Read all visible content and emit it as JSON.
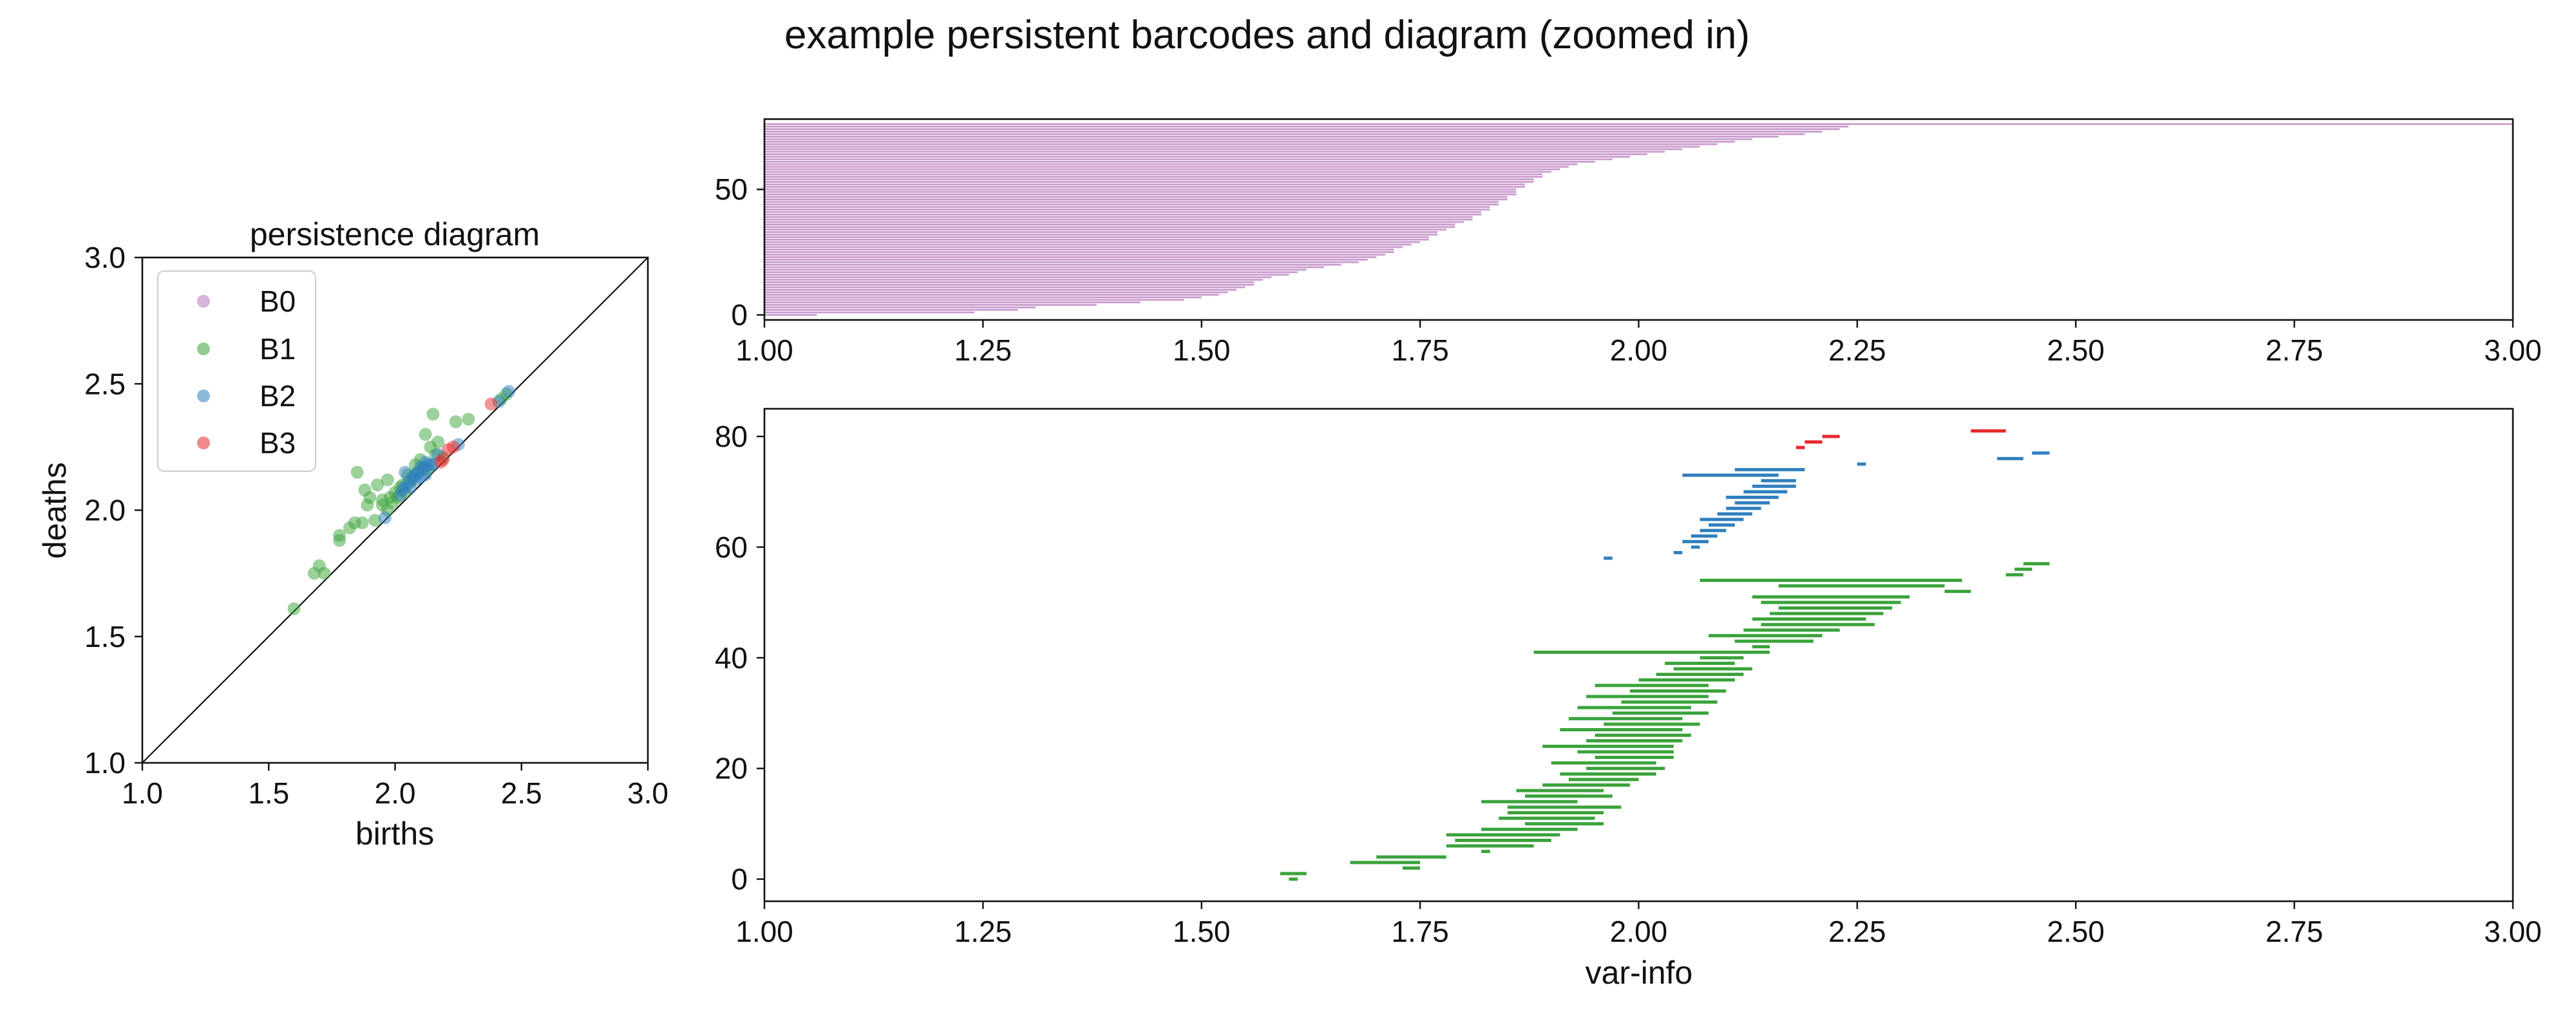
{
  "figure": {
    "title": "example persistent barcodes and diagram (zoomed in)"
  },
  "colors": {
    "B0": "#c99bcc",
    "B1": "#3aa33a",
    "B2": "#2f7fbf",
    "B3": "#e8292b",
    "diagonal": "#111111"
  },
  "chart_data": [
    {
      "type": "scatter",
      "title": "persistence diagram",
      "xlabel": "births",
      "ylabel": "deaths",
      "xlim": [
        1.0,
        3.0
      ],
      "ylim": [
        1.0,
        3.0
      ],
      "xticks": [
        "1.0",
        "1.5",
        "2.0",
        "2.5",
        "3.0"
      ],
      "yticks": [
        "1.0",
        "1.5",
        "2.0",
        "2.5",
        "3.0"
      ],
      "diagonal": true,
      "legend": {
        "placement": "upper-left",
        "entries": [
          "B0",
          "B1",
          "B2",
          "B3"
        ]
      },
      "series": [
        {
          "name": "B0",
          "points": []
        },
        {
          "name": "B1",
          "points": [
            [
              1.6,
              1.61
            ],
            [
              1.68,
              1.75
            ],
            [
              1.7,
              1.78
            ],
            [
              1.72,
              1.75
            ],
            [
              1.78,
              1.88
            ],
            [
              1.78,
              1.9
            ],
            [
              1.82,
              1.93
            ],
            [
              1.84,
              1.95
            ],
            [
              1.85,
              2.15
            ],
            [
              1.87,
              1.95
            ],
            [
              1.88,
              2.08
            ],
            [
              1.89,
              2.02
            ],
            [
              1.9,
              2.05
            ],
            [
              1.92,
              1.96
            ],
            [
              1.93,
              2.1
            ],
            [
              1.95,
              2.02
            ],
            [
              1.95,
              2.04
            ],
            [
              1.97,
              2.0
            ],
            [
              1.97,
              2.12
            ],
            [
              1.98,
              2.05
            ],
            [
              1.99,
              2.03
            ],
            [
              2.0,
              2.07
            ],
            [
              2.01,
              2.05
            ],
            [
              2.02,
              2.09
            ],
            [
              2.03,
              2.1
            ],
            [
              2.04,
              2.07
            ],
            [
              2.05,
              2.14
            ],
            [
              2.06,
              2.11
            ],
            [
              2.07,
              2.13
            ],
            [
              2.08,
              2.18
            ],
            [
              2.09,
              2.15
            ],
            [
              2.1,
              2.2
            ],
            [
              2.11,
              2.17
            ],
            [
              2.12,
              2.3
            ],
            [
              2.13,
              2.16
            ],
            [
              2.14,
              2.25
            ],
            [
              2.15,
              2.38
            ],
            [
              2.16,
              2.22
            ],
            [
              2.17,
              2.27
            ],
            [
              2.19,
              2.21
            ],
            [
              2.24,
              2.35
            ],
            [
              2.29,
              2.36
            ],
            [
              2.42,
              2.44
            ],
            [
              2.44,
              2.46
            ]
          ]
        },
        {
          "name": "B2",
          "points": [
            [
              1.96,
              1.97
            ],
            [
              2.02,
              2.06
            ],
            [
              2.03,
              2.08
            ],
            [
              2.04,
              2.09
            ],
            [
              2.04,
              2.15
            ],
            [
              2.05,
              2.11
            ],
            [
              2.06,
              2.09
            ],
            [
              2.07,
              2.13
            ],
            [
              2.08,
              2.12
            ],
            [
              2.08,
              2.14
            ],
            [
              2.09,
              2.15
            ],
            [
              2.1,
              2.13
            ],
            [
              2.1,
              2.17
            ],
            [
              2.11,
              2.16
            ],
            [
              2.12,
              2.14
            ],
            [
              2.12,
              2.19
            ],
            [
              2.13,
              2.18
            ],
            [
              2.14,
              2.18
            ],
            [
              2.15,
              2.18
            ],
            [
              2.17,
              2.22
            ],
            [
              2.25,
              2.26
            ],
            [
              2.41,
              2.43
            ],
            [
              2.45,
              2.47
            ]
          ]
        },
        {
          "name": "B3",
          "points": [
            [
              2.18,
              2.19
            ],
            [
              2.19,
              2.2
            ],
            [
              2.21,
              2.24
            ],
            [
              2.23,
              2.25
            ],
            [
              2.38,
              2.42
            ]
          ]
        }
      ]
    },
    {
      "type": "bar",
      "orientation": "horizontal",
      "subtype": "barcode",
      "title": "",
      "xlabel": "",
      "ylabel": "",
      "xlim": [
        1.0,
        3.0
      ],
      "ylim": [
        -2,
        78
      ],
      "xticks": [
        "1.00",
        "1.25",
        "1.50",
        "1.75",
        "2.00",
        "2.25",
        "2.50",
        "2.75",
        "3.00"
      ],
      "yticks": [
        "0",
        "50"
      ],
      "series": [
        {
          "name": "B0",
          "start": 1.0,
          "bars": [
            [
              0,
              1.06
            ],
            [
              1,
              1.24
            ],
            [
              2,
              1.29
            ],
            [
              3,
              1.31
            ],
            [
              4,
              1.38
            ],
            [
              5,
              1.43
            ],
            [
              6,
              1.48
            ],
            [
              7,
              1.5
            ],
            [
              8,
              1.52
            ],
            [
              9,
              1.53
            ],
            [
              10,
              1.54
            ],
            [
              11,
              1.55
            ],
            [
              12,
              1.56
            ],
            [
              13,
              1.56
            ],
            [
              14,
              1.57
            ],
            [
              15,
              1.58
            ],
            [
              16,
              1.6
            ],
            [
              17,
              1.61
            ],
            [
              18,
              1.62
            ],
            [
              19,
              1.64
            ],
            [
              20,
              1.66
            ],
            [
              21,
              1.68
            ],
            [
              22,
              1.69
            ],
            [
              23,
              1.7
            ],
            [
              24,
              1.71
            ],
            [
              25,
              1.72
            ],
            [
              26,
              1.72
            ],
            [
              27,
              1.73
            ],
            [
              28,
              1.74
            ],
            [
              29,
              1.75
            ],
            [
              30,
              1.76
            ],
            [
              31,
              1.76
            ],
            [
              32,
              1.77
            ],
            [
              33,
              1.77
            ],
            [
              34,
              1.78
            ],
            [
              35,
              1.79
            ],
            [
              36,
              1.79
            ],
            [
              37,
              1.8
            ],
            [
              38,
              1.81
            ],
            [
              39,
              1.81
            ],
            [
              40,
              1.82
            ],
            [
              41,
              1.82
            ],
            [
              42,
              1.83
            ],
            [
              43,
              1.83
            ],
            [
              44,
              1.84
            ],
            [
              45,
              1.84
            ],
            [
              46,
              1.85
            ],
            [
              47,
              1.85
            ],
            [
              48,
              1.86
            ],
            [
              49,
              1.86
            ],
            [
              50,
              1.86
            ],
            [
              51,
              1.87
            ],
            [
              52,
              1.87
            ],
            [
              53,
              1.88
            ],
            [
              54,
              1.88
            ],
            [
              55,
              1.89
            ],
            [
              56,
              1.89
            ],
            [
              57,
              1.9
            ],
            [
              58,
              1.91
            ],
            [
              59,
              1.92
            ],
            [
              60,
              1.93
            ],
            [
              61,
              1.95
            ],
            [
              62,
              1.97
            ],
            [
              63,
              1.99
            ],
            [
              64,
              2.01
            ],
            [
              65,
              2.03
            ],
            [
              66,
              2.05
            ],
            [
              67,
              2.07
            ],
            [
              68,
              2.09
            ],
            [
              69,
              2.11
            ],
            [
              70,
              2.13
            ],
            [
              71,
              2.16
            ],
            [
              72,
              2.19
            ],
            [
              73,
              2.21
            ],
            [
              74,
              2.23
            ],
            [
              75,
              2.24
            ],
            [
              76,
              3.0
            ]
          ]
        }
      ]
    },
    {
      "type": "bar",
      "orientation": "horizontal",
      "subtype": "barcode",
      "title": "",
      "xlabel": "var-info",
      "ylabel": "",
      "xlim": [
        1.0,
        3.0
      ],
      "ylim": [
        -4,
        85
      ],
      "xticks": [
        "1.00",
        "1.25",
        "1.50",
        "1.75",
        "2.00",
        "2.25",
        "2.50",
        "2.75",
        "3.00"
      ],
      "yticks": [
        "0",
        "20",
        "40",
        "60",
        "80"
      ],
      "series": [
        {
          "name": "B1",
          "bars": [
            [
              0,
              1.6,
              1.61
            ],
            [
              1,
              1.59,
              1.62
            ],
            [
              2,
              1.73,
              1.75
            ],
            [
              3,
              1.67,
              1.75
            ],
            [
              4,
              1.7,
              1.78
            ],
            [
              5,
              1.82,
              1.83
            ],
            [
              6,
              1.78,
              1.88
            ],
            [
              7,
              1.79,
              1.9
            ],
            [
              8,
              1.78,
              1.91
            ],
            [
              9,
              1.82,
              1.93
            ],
            [
              10,
              1.87,
              1.96
            ],
            [
              11,
              1.84,
              1.95
            ],
            [
              12,
              1.85,
              1.96
            ],
            [
              13,
              1.85,
              1.98
            ],
            [
              14,
              1.82,
              1.93
            ],
            [
              15,
              1.87,
              1.97
            ],
            [
              16,
              1.86,
              1.96
            ],
            [
              17,
              1.89,
              1.99
            ],
            [
              18,
              1.92,
              2.0
            ],
            [
              19,
              1.91,
              2.02
            ],
            [
              20,
              1.94,
              2.03
            ],
            [
              21,
              1.9,
              2.02
            ],
            [
              22,
              1.95,
              2.04
            ],
            [
              23,
              1.93,
              2.04
            ],
            [
              24,
              1.89,
              2.04
            ],
            [
              25,
              1.94,
              2.05
            ],
            [
              26,
              1.95,
              2.06
            ],
            [
              27,
              1.91,
              2.05
            ],
            [
              28,
              1.96,
              2.07
            ],
            [
              29,
              1.92,
              2.05
            ],
            [
              30,
              1.97,
              2.08
            ],
            [
              31,
              1.93,
              2.06
            ],
            [
              32,
              1.98,
              2.09
            ],
            [
              33,
              1.94,
              2.08
            ],
            [
              34,
              1.99,
              2.1
            ],
            [
              35,
              1.95,
              2.08
            ],
            [
              36,
              2.0,
              2.11
            ],
            [
              37,
              2.02,
              2.12
            ],
            [
              38,
              2.04,
              2.13
            ],
            [
              39,
              2.03,
              2.11
            ],
            [
              40,
              2.07,
              2.12
            ],
            [
              41,
              1.88,
              2.15
            ],
            [
              42,
              2.13,
              2.15
            ],
            [
              43,
              2.11,
              2.2
            ],
            [
              44,
              2.08,
              2.21
            ],
            [
              45,
              2.12,
              2.23
            ],
            [
              46,
              2.14,
              2.27
            ],
            [
              47,
              2.13,
              2.26
            ],
            [
              48,
              2.15,
              2.28
            ],
            [
              49,
              2.16,
              2.29
            ],
            [
              50,
              2.14,
              2.3
            ],
            [
              51,
              2.13,
              2.31
            ],
            [
              52,
              2.35,
              2.38
            ],
            [
              53,
              2.16,
              2.35
            ],
            [
              54,
              2.07,
              2.37
            ],
            [
              55,
              2.42,
              2.44
            ],
            [
              56,
              2.43,
              2.45
            ],
            [
              57,
              2.44,
              2.47
            ]
          ]
        },
        {
          "name": "B2",
          "bars": [
            [
              58,
              1.96,
              1.97
            ],
            [
              59,
              2.04,
              2.05
            ],
            [
              60,
              2.06,
              2.07
            ],
            [
              61,
              2.05,
              2.08
            ],
            [
              62,
              2.06,
              2.09
            ],
            [
              63,
              2.07,
              2.1
            ],
            [
              64,
              2.08,
              2.11
            ],
            [
              65,
              2.07,
              2.12
            ],
            [
              66,
              2.09,
              2.13
            ],
            [
              67,
              2.1,
              2.14
            ],
            [
              68,
              2.11,
              2.15
            ],
            [
              69,
              2.1,
              2.16
            ],
            [
              70,
              2.12,
              2.17
            ],
            [
              71,
              2.13,
              2.18
            ],
            [
              72,
              2.14,
              2.18
            ],
            [
              73,
              2.05,
              2.16
            ],
            [
              74,
              2.11,
              2.19
            ],
            [
              75,
              2.25,
              2.26
            ],
            [
              76,
              2.41,
              2.44
            ],
            [
              77,
              2.45,
              2.47
            ]
          ]
        },
        {
          "name": "B3",
          "bars": [
            [
              78,
              2.18,
              2.19
            ],
            [
              79,
              2.19,
              2.21
            ],
            [
              80,
              2.21,
              2.23
            ],
            [
              81,
              2.38,
              2.42
            ]
          ]
        }
      ]
    }
  ]
}
